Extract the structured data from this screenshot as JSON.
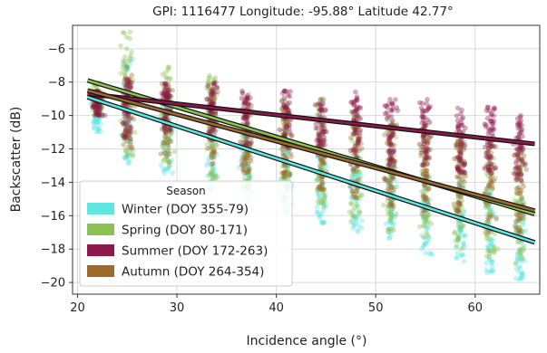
{
  "chart_data": {
    "type": "scatter",
    "title": "GPI: 1116477 Longitude: -95.88° Latitude 42.77°",
    "xlabel": "Incidence angle (°)",
    "ylabel": "Backscatter (dB)",
    "xlim": [
      19.5,
      66.5
    ],
    "ylim": [
      -20.7,
      -4.6
    ],
    "xticks": [
      20,
      30,
      40,
      50,
      60
    ],
    "yticks": [
      -20,
      -18,
      -16,
      -14,
      -12,
      -10,
      -8,
      -6
    ],
    "grid": true,
    "legend": {
      "title": "Season",
      "placement": "lower-left"
    },
    "series": [
      {
        "name": "Winter (DOY 355-79)",
        "color": "#5ee6e0",
        "fit": {
          "x": [
            21,
            66
          ],
          "y": [
            -8.9,
            -17.6
          ]
        },
        "clusters": [
          {
            "x": 22,
            "y_range": [
              -11.0,
              -8.8
            ]
          },
          {
            "x": 25,
            "y_range": [
              -13.0,
              -6.5
            ]
          },
          {
            "x": 29,
            "y_range": [
              -13.5,
              -8.5
            ]
          },
          {
            "x": 33.5,
            "y_range": [
              -14.5,
              -9.5
            ]
          },
          {
            "x": 37,
            "y_range": [
              -15.0,
              -10.5
            ]
          },
          {
            "x": 41,
            "y_range": [
              -16.0,
              -11.0
            ]
          },
          {
            "x": 44.5,
            "y_range": [
              -16.5,
              -12.0
            ]
          },
          {
            "x": 48,
            "y_range": [
              -17.0,
              -12.5
            ]
          },
          {
            "x": 51.5,
            "y_range": [
              -17.5,
              -13.0
            ]
          },
          {
            "x": 55,
            "y_range": [
              -18.5,
              -13.5
            ]
          },
          {
            "x": 58.5,
            "y_range": [
              -18.8,
              -14.0
            ]
          },
          {
            "x": 61.5,
            "y_range": [
              -19.5,
              -14.5
            ]
          },
          {
            "x": 64.5,
            "y_range": [
              -20.0,
              -15.0
            ]
          }
        ]
      },
      {
        "name": "Spring (DOY 80-171)",
        "color": "#8cc152",
        "fit": {
          "x": [
            21,
            66
          ],
          "y": [
            -7.9,
            -15.9
          ]
        },
        "clusters": [
          {
            "x": 22,
            "y_range": [
              -10.0,
              -8.0
            ]
          },
          {
            "x": 25,
            "y_range": [
              -12.5,
              -5.0
            ]
          },
          {
            "x": 29,
            "y_range": [
              -13.0,
              -7.0
            ]
          },
          {
            "x": 33.5,
            "y_range": [
              -14.0,
              -7.5
            ]
          },
          {
            "x": 37,
            "y_range": [
              -14.5,
              -8.5
            ]
          },
          {
            "x": 41,
            "y_range": [
              -15.0,
              -9.0
            ]
          },
          {
            "x": 44.5,
            "y_range": [
              -15.5,
              -9.0
            ]
          },
          {
            "x": 48,
            "y_range": [
              -16.5,
              -9.5
            ]
          },
          {
            "x": 51.5,
            "y_range": [
              -17.0,
              -10.0
            ]
          },
          {
            "x": 55,
            "y_range": [
              -17.5,
              -10.5
            ]
          },
          {
            "x": 58.5,
            "y_range": [
              -18.0,
              -11.0
            ]
          },
          {
            "x": 61.5,
            "y_range": [
              -18.5,
              -11.5
            ]
          },
          {
            "x": 64.5,
            "y_range": [
              -19.0,
              -12.0
            ]
          }
        ]
      },
      {
        "name": "Summer (DOY 172-263)",
        "color": "#8b1a4a",
        "fit": {
          "x": [
            21,
            66
          ],
          "y": [
            -8.7,
            -11.7
          ]
        },
        "clusters": [
          {
            "x": 22,
            "y_range": [
              -10.0,
              -8.5
            ]
          },
          {
            "x": 25,
            "y_range": [
              -11.5,
              -7.5
            ]
          },
          {
            "x": 29,
            "y_range": [
              -11.0,
              -8.0
            ]
          },
          {
            "x": 33.5,
            "y_range": [
              -11.5,
              -8.0
            ]
          },
          {
            "x": 37,
            "y_range": [
              -12.0,
              -8.5
            ]
          },
          {
            "x": 41,
            "y_range": [
              -12.0,
              -8.5
            ]
          },
          {
            "x": 44.5,
            "y_range": [
              -12.5,
              -9.0
            ]
          },
          {
            "x": 48,
            "y_range": [
              -13.0,
              -8.5
            ]
          },
          {
            "x": 51.5,
            "y_range": [
              -13.0,
              -9.0
            ]
          },
          {
            "x": 55,
            "y_range": [
              -13.0,
              -9.0
            ]
          },
          {
            "x": 58.5,
            "y_range": [
              -13.5,
              -9.5
            ]
          },
          {
            "x": 61.5,
            "y_range": [
              -13.5,
              -9.5
            ]
          },
          {
            "x": 64.5,
            "y_range": [
              -14.0,
              -10.0
            ]
          }
        ]
      },
      {
        "name": "Autumn (DOY 264-354)",
        "color": "#9c6a2c",
        "fit": {
          "x": [
            21,
            66
          ],
          "y": [
            -8.5,
            -15.7
          ]
        },
        "clusters": [
          {
            "x": 22,
            "y_range": [
              -10.0,
              -8.5
            ]
          },
          {
            "x": 25,
            "y_range": [
              -12.0,
              -7.0
            ]
          },
          {
            "x": 29,
            "y_range": [
              -12.5,
              -8.0
            ]
          },
          {
            "x": 33.5,
            "y_range": [
              -13.0,
              -8.5
            ]
          },
          {
            "x": 37,
            "y_range": [
              -13.5,
              -9.0
            ]
          },
          {
            "x": 41,
            "y_range": [
              -14.0,
              -9.5
            ]
          },
          {
            "x": 44.5,
            "y_range": [
              -14.5,
              -10.0
            ]
          },
          {
            "x": 48,
            "y_range": [
              -15.0,
              -10.0
            ]
          },
          {
            "x": 51.5,
            "y_range": [
              -15.5,
              -10.5
            ]
          },
          {
            "x": 55,
            "y_range": [
              -16.0,
              -11.0
            ]
          },
          {
            "x": 58.5,
            "y_range": [
              -16.5,
              -11.0
            ]
          },
          {
            "x": 61.5,
            "y_range": [
              -17.0,
              -11.5
            ]
          },
          {
            "x": 64.5,
            "y_range": [
              -17.5,
              -12.0
            ]
          }
        ]
      }
    ]
  }
}
